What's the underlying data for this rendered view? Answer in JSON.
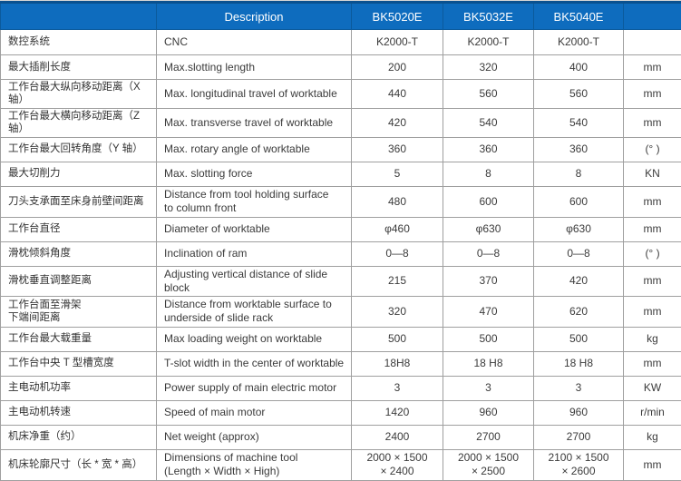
{
  "table": {
    "colors": {
      "header_bg": "#0e6cbe",
      "header_border": "#0b5a9c",
      "header_top_border": "#0a5190",
      "grid_border": "#9f9f9f",
      "body_text": "#3b3b3b",
      "header_text": "#ffffff"
    },
    "header": {
      "spec_cn": "",
      "description": "Description",
      "models": [
        "BK5020E",
        "BK5032E",
        "BK5040E"
      ],
      "unit": ""
    },
    "rows": [
      {
        "cn": "数控系统",
        "desc": "CNC",
        "v1": "K2000-T",
        "v2": "K2000-T",
        "v3": "K2000-T",
        "unit": ""
      },
      {
        "cn": "最大插削长度",
        "desc": "Max.slotting length",
        "v1": "200",
        "v2": "320",
        "v3": "400",
        "unit": "mm"
      },
      {
        "cn": "工作台最大纵向移动距离（X 轴）",
        "desc": "Max. longitudinal travel of worktable",
        "v1": "440",
        "v2": "560",
        "v3": "560",
        "unit": "mm"
      },
      {
        "cn": "工作台最大横向移动距离（Z 轴）",
        "desc": "Max. transverse travel of worktable",
        "v1": "420",
        "v2": "540",
        "v3": "540",
        "unit": "mm"
      },
      {
        "cn": "工作台最大回转角度（Y 轴）",
        "desc": "Max. rotary angle of worktable",
        "v1": "360",
        "v2": "360",
        "v3": "360",
        "unit": "(° )"
      },
      {
        "cn": "最大切削力",
        "desc": "Max. slotting force",
        "v1": "5",
        "v2": "8",
        "v3": "8",
        "unit": "KN"
      },
      {
        "cn": "刀头支承面至床身前壁间距离",
        "desc": "Distance from tool holding surface\nto column front",
        "v1": "480",
        "v2": "600",
        "v3": "600",
        "unit": "mm"
      },
      {
        "cn": "工作台直径",
        "desc": "Diameter of worktable",
        "v1": "φ460",
        "v2": "φ630",
        "v3": "φ630",
        "unit": "mm"
      },
      {
        "cn": "滑枕倾斜角度",
        "desc": "Inclination of ram",
        "v1": "0—8",
        "v2": "0—8",
        "v3": "0—8",
        "unit": "(° )"
      },
      {
        "cn": "滑枕垂直调整距离",
        "desc": "Adjusting vertical distance of slide block",
        "v1": "215",
        "v2": "370",
        "v3": "420",
        "unit": "mm"
      },
      {
        "cn": "工作台面至滑架\n下端间距离",
        "desc": "Distance from worktable surface to\nunderside of slide rack",
        "v1": "320",
        "v2": "470",
        "v3": "620",
        "unit": "mm"
      },
      {
        "cn": "工作台最大载重量",
        "desc": "Max loading weight on worktable",
        "v1": "500",
        "v2": "500",
        "v3": "500",
        "unit": "kg"
      },
      {
        "cn": "工作台中央 T 型槽宽度",
        "desc": "T-slot width in the center of worktable",
        "v1": "18H8",
        "v2": "18 H8",
        "v3": "18 H8",
        "unit": "mm"
      },
      {
        "cn": "主电动机功率",
        "desc": "Power supply of main electric motor",
        "v1": "3",
        "v2": "3",
        "v3": "3",
        "unit": "KW"
      },
      {
        "cn": "主电动机转速",
        "desc": "Speed of main motor",
        "v1": "1420",
        "v2": "960",
        "v3": "960",
        "unit": "r/min"
      },
      {
        "cn": "机床净重（约）",
        "desc": "Net weight (approx)",
        "v1": "2400",
        "v2": "2700",
        "v3": "2700",
        "unit": "kg"
      },
      {
        "cn": "机床轮廓尺寸（长 * 宽 * 高）",
        "desc": "Dimensions of machine tool\n(Length × Width × High)",
        "v1": "2000 × 1500\n× 2400",
        "v2": "2000 × 1500\n× 2500",
        "v3": "2100 × 1500\n× 2600",
        "unit": "mm"
      }
    ]
  }
}
